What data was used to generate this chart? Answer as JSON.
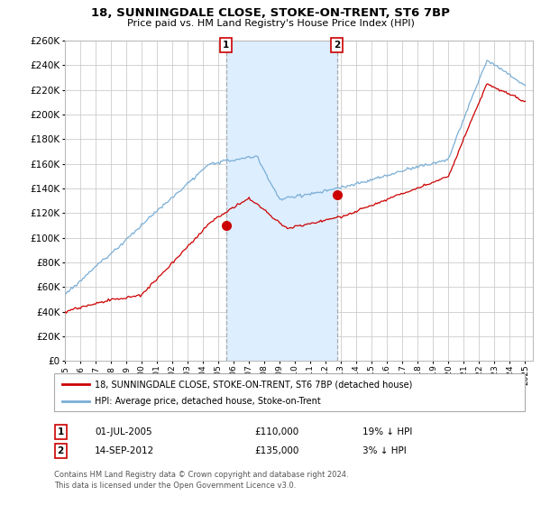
{
  "title": "18, SUNNINGDALE CLOSE, STOKE-ON-TRENT, ST6 7BP",
  "subtitle": "Price paid vs. HM Land Registry's House Price Index (HPI)",
  "ylim": [
    0,
    260000
  ],
  "yticks": [
    0,
    20000,
    40000,
    60000,
    80000,
    100000,
    120000,
    140000,
    160000,
    180000,
    200000,
    220000,
    240000,
    260000
  ],
  "xlim_start": 1995,
  "xlim_end": 2025.5,
  "hpi_color": "#7aaed6",
  "price_color": "#cc0000",
  "shade_color": "#ddeeff",
  "grid_color": "#cccccc",
  "bg_color": "#ffffff",
  "ann1_x": 2005.5,
  "ann1_price": 110000,
  "ann2_x": 2012.72,
  "ann2_price": 135000,
  "legend_line1": "18, SUNNINGDALE CLOSE, STOKE-ON-TRENT, ST6 7BP (detached house)",
  "legend_line2": "HPI: Average price, detached house, Stoke-on-Trent",
  "ann1_text": "01-JUL-2005",
  "ann1_amount": "£110,000",
  "ann1_pct": "19% ↓ HPI",
  "ann2_text": "14-SEP-2012",
  "ann2_amount": "£135,000",
  "ann2_pct": "3% ↓ HPI",
  "footer1": "Contains HM Land Registry data © Crown copyright and database right 2024.",
  "footer2": "This data is licensed under the Open Government Licence v3.0."
}
